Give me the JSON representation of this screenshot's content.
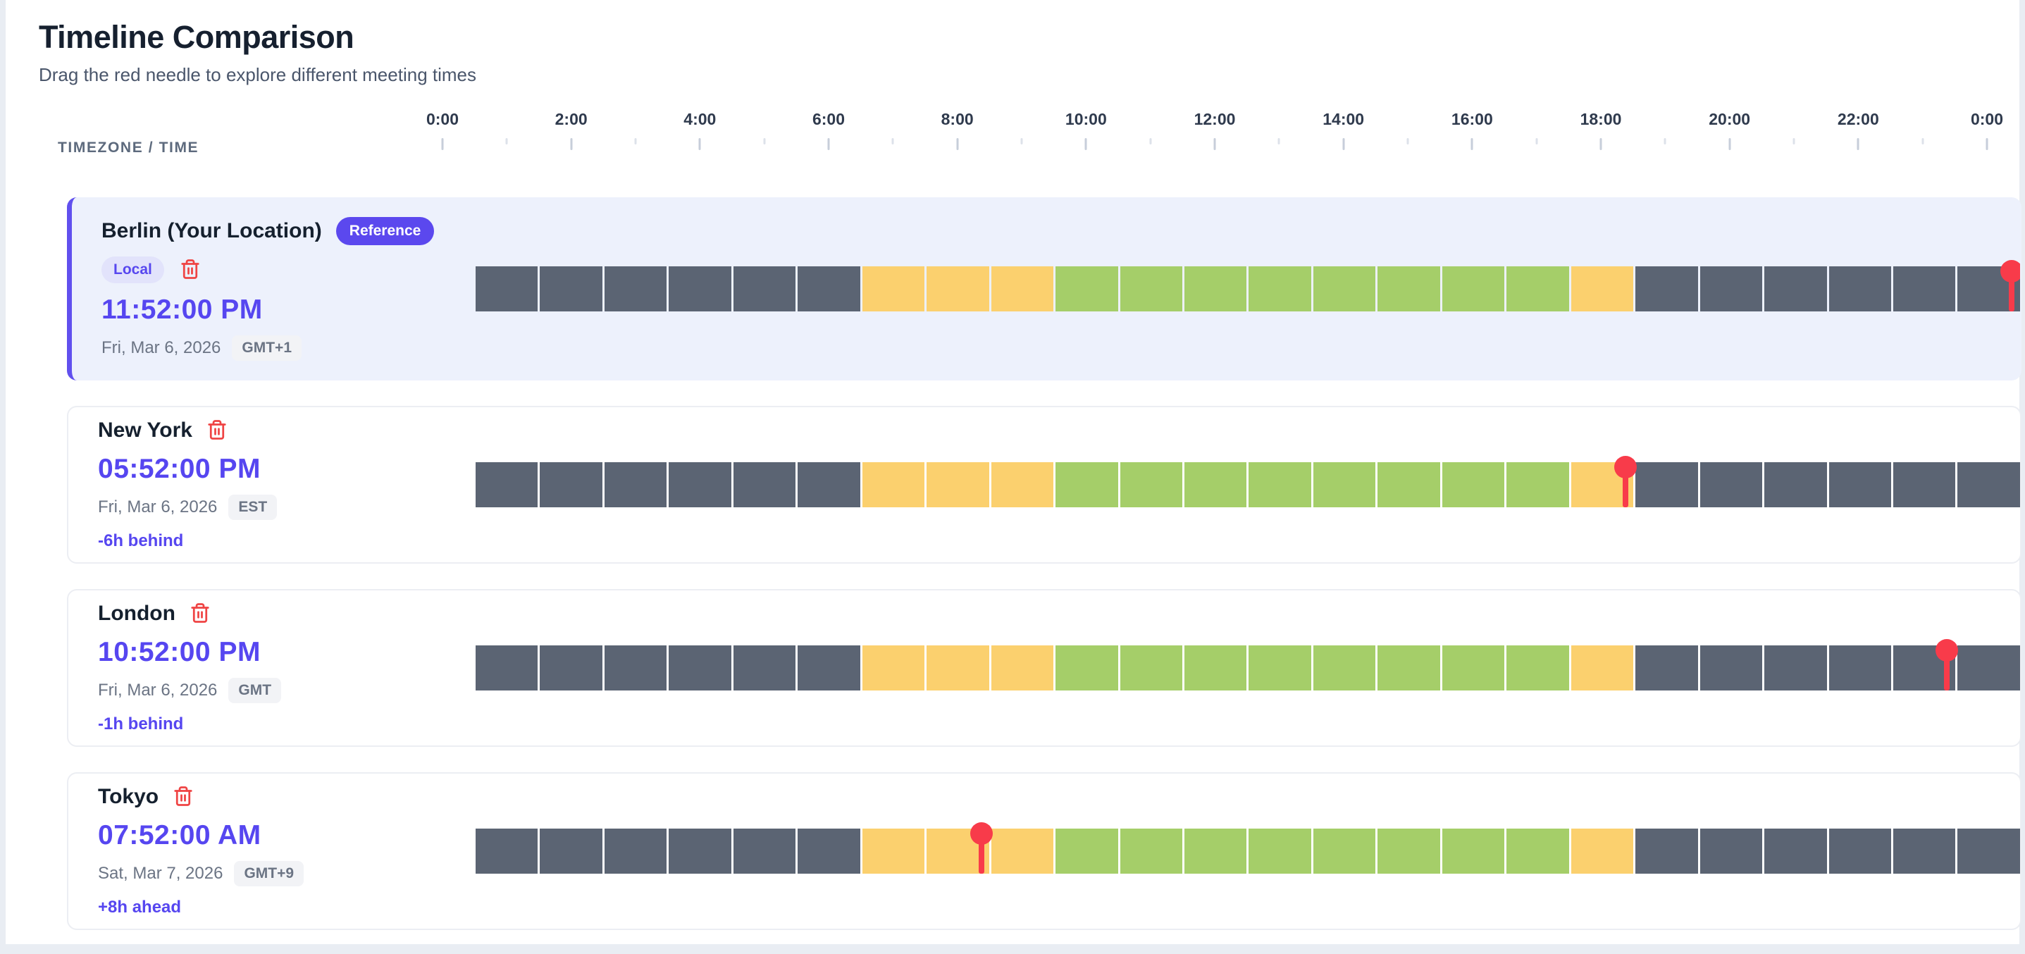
{
  "page": {
    "title": "Timeline Comparison",
    "subtitle": "Drag the red needle to explore different meeting times"
  },
  "axis": {
    "column_header": "TIMEZONE / TIME",
    "hours": 24,
    "labels": [
      "0:00",
      "2:00",
      "4:00",
      "6:00",
      "8:00",
      "10:00",
      "12:00",
      "14:00",
      "16:00",
      "18:00",
      "20:00",
      "22:00",
      "0:00"
    ]
  },
  "timeline": {
    "colors": {
      "off": "#5b6473",
      "shoulder": "#fbd06e",
      "work": "#a5ce69",
      "needle": "#f83b4a"
    },
    "hour_categories": [
      "off",
      "off",
      "off",
      "off",
      "off",
      "off",
      "shoulder",
      "shoulder",
      "shoulder",
      "work",
      "work",
      "work",
      "work",
      "work",
      "work",
      "work",
      "work",
      "shoulder",
      "off",
      "off",
      "off",
      "off",
      "off",
      "off"
    ]
  },
  "icons": {
    "trash": "trash-icon"
  },
  "rows": [
    {
      "city": "Berlin (Your Location)",
      "reference_badge": "Reference",
      "local_badge": "Local",
      "time": "11:52:00 PM",
      "date": "Fri, Mar 6, 2026",
      "tz": "GMT+1",
      "needle_hour": 23.8667
    },
    {
      "city": "New York",
      "time": "05:52:00 PM",
      "date": "Fri, Mar 6, 2026",
      "tz": "EST",
      "offset": "-6h behind",
      "needle_hour": 17.8667
    },
    {
      "city": "London",
      "time": "10:52:00 PM",
      "date": "Fri, Mar 6, 2026",
      "tz": "GMT",
      "offset": "-1h behind",
      "needle_hour": 22.8667
    },
    {
      "city": "Tokyo",
      "time": "07:52:00 AM",
      "date": "Sat, Mar 7, 2026",
      "tz": "GMT+9",
      "offset": "+8h ahead",
      "needle_hour": 7.8667
    }
  ]
}
